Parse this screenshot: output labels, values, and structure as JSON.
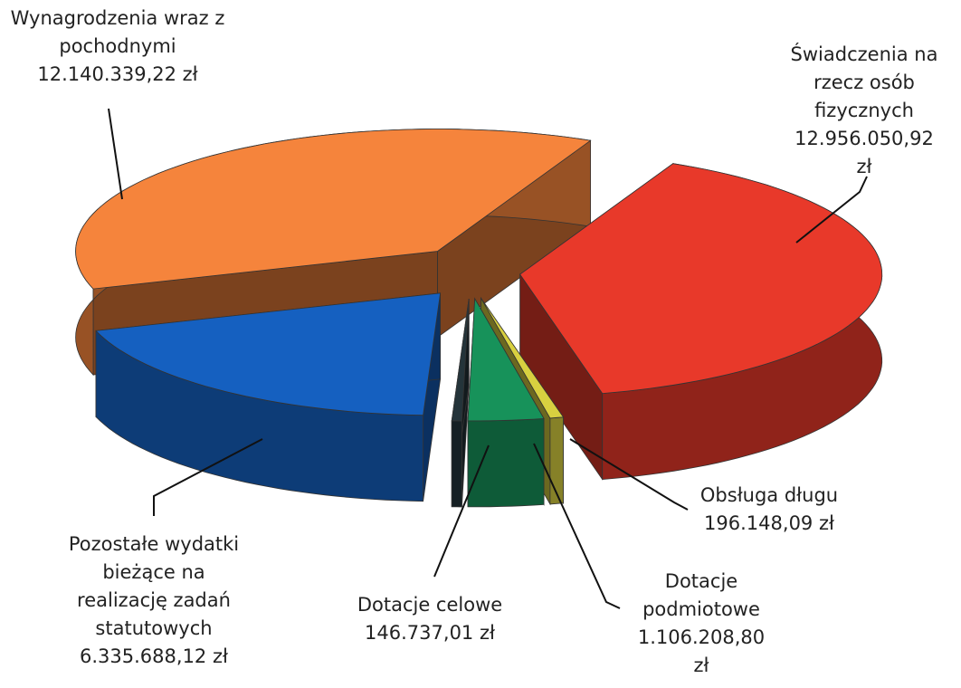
{
  "chart_data": {
    "type": "pie3d",
    "categories": [
      "Świadczenia na rzecz osób fizycznych",
      "Obsługa długu",
      "Dotacje podmiotowe",
      "Dotacje celowe",
      "Pozostałe wydatki bieżące na realizację zadań statutowych",
      "Wynagrodzenia wraz z pochodnymi"
    ],
    "values": [
      12956050.92,
      196148.09,
      1106208.8,
      146737.01,
      6335688.12,
      12140339.22
    ],
    "value_labels": [
      "12.956.050,92 zł",
      "196.148,09 zł",
      "1.106.208,80 zł",
      "146.737,01 zł",
      "6.335.688,12 zł",
      "12.140.339,22 zł"
    ],
    "colors": [
      "#e8392a",
      "#d8d040",
      "#17925a",
      "#24343a",
      "#1560c0",
      "#f5843c"
    ]
  }
}
